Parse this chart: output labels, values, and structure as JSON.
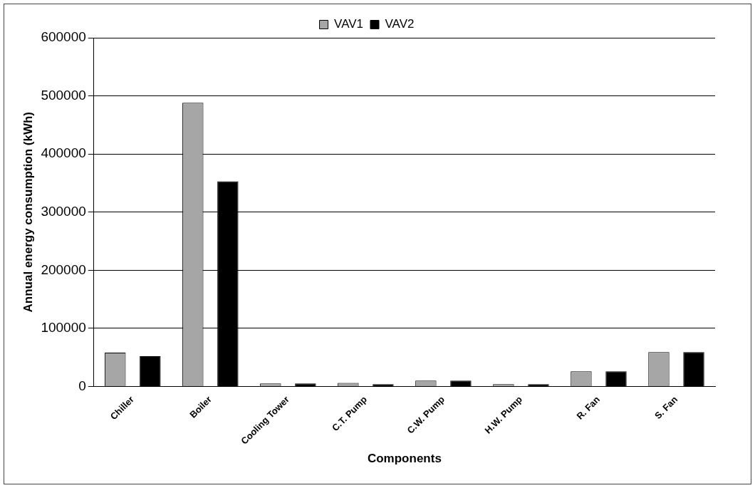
{
  "chart_data": {
    "type": "bar",
    "xlabel": "Components",
    "ylabel": "Annual energy consumption (kWh)",
    "categories": [
      "Chiller",
      "Boiler",
      "Cooling Tower",
      "C.T. Pump",
      "C.W. Pump",
      "H.W. Pump",
      "R. Fan",
      "S. Fan"
    ],
    "series": [
      {
        "name": "VAV1",
        "color": "#a6a6a6",
        "values": [
          58000,
          488000,
          5000,
          6000,
          10000,
          4000,
          26000,
          59000
        ]
      },
      {
        "name": "VAV2",
        "color": "#000000",
        "values": [
          52000,
          353000,
          5000,
          4000,
          10000,
          4000,
          26000,
          59000
        ]
      }
    ],
    "ylim": [
      0,
      600000
    ],
    "yticks": [
      0,
      100000,
      200000,
      300000,
      400000,
      500000,
      600000
    ],
    "grid": "y",
    "legend": "top"
  }
}
